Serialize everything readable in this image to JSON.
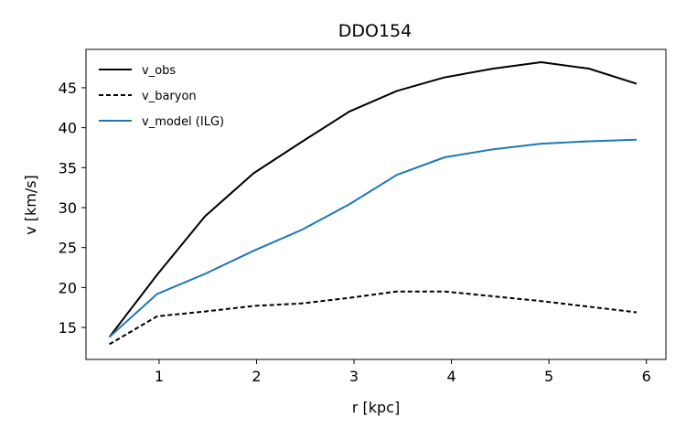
{
  "chart_data": {
    "type": "line",
    "title": "DDO154",
    "xlabel": "r [kpc]",
    "ylabel": "v [km/s]",
    "xlim": [
      0.25,
      6.2
    ],
    "ylim": [
      11.0,
      49.8
    ],
    "xticks": [
      1,
      2,
      3,
      4,
      5,
      6
    ],
    "yticks": [
      15,
      20,
      25,
      30,
      35,
      40,
      45
    ],
    "grid": false,
    "legend": "top-left",
    "x": [
      0.49,
      0.98,
      1.47,
      1.97,
      2.46,
      2.95,
      3.44,
      3.93,
      4.43,
      4.92,
      5.41,
      5.9
    ],
    "series": [
      {
        "name": "v_obs",
        "color": "#000000",
        "dash": "solid",
        "values": [
          13.8,
          21.6,
          28.9,
          34.3,
          38.2,
          42.0,
          44.6,
          46.3,
          47.4,
          48.2,
          47.4,
          45.5
        ]
      },
      {
        "name": "v_baryon",
        "color": "#000000",
        "dash": "dashed",
        "values": [
          12.9,
          16.4,
          17.0,
          17.7,
          18.0,
          18.7,
          19.5,
          19.5,
          18.9,
          18.3,
          17.6,
          16.9
        ]
      },
      {
        "name": "v_model (ILG)",
        "color": "#1f77b4",
        "dash": "solid",
        "values": [
          13.8,
          19.2,
          21.7,
          24.6,
          27.2,
          30.4,
          34.1,
          36.3,
          37.3,
          38.0,
          38.3,
          38.5
        ]
      }
    ]
  }
}
